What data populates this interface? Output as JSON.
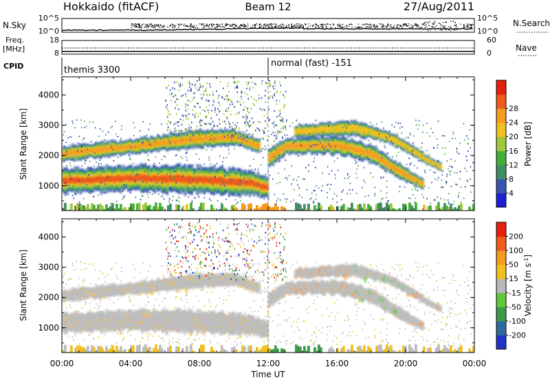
{
  "header": {
    "station": "Hokkaido (fitACF)",
    "beam": "Beam 12",
    "date": "27/Aug/2011"
  },
  "noise_panel": {
    "left_label": "N.Sky",
    "right_label": "N.Search",
    "left_ticks": [
      "10^5",
      "10^0"
    ],
    "right_ticks": [
      "10^5",
      "10^0"
    ]
  },
  "freq_panel": {
    "left_label_line1": "Freq.",
    "left_label_line2": "[MHz]",
    "right_label": "Nave",
    "left_ticks": [
      "18",
      "8"
    ],
    "right_ticks": [
      "60",
      "0"
    ]
  },
  "cpid_panel": {
    "label": "CPID",
    "modes": [
      {
        "start_hour": 0.0,
        "name": "themis 3300"
      },
      {
        "start_hour": 12.0,
        "name": "normal (fast) -151"
      }
    ]
  },
  "x_axis": {
    "label": "Time UT",
    "range": [
      0,
      24
    ],
    "tick_labels": [
      "00:00",
      "04:00",
      "08:00",
      "12:00",
      "16:00",
      "20:00",
      "00:00"
    ]
  },
  "chart_data": [
    {
      "type": "heatmap",
      "parameter": "Power",
      "ylabel": "Slant Range [km]",
      "ylim": [
        180,
        4600
      ],
      "y_ticks": [
        "1000",
        "2000",
        "3000",
        "4000"
      ],
      "colorbar_label": "Power [dB]",
      "colorbar_ticks": [
        "4",
        "8",
        "12",
        "16",
        "20",
        "24",
        "28"
      ],
      "colorbar_colors": [
        "#1f1fd2",
        "#3a56b0",
        "#3f8f63",
        "#44b03a",
        "#a0c83a",
        "#f0c020",
        "#f59a20",
        "#f05a1a",
        "#e6200f"
      ],
      "echo_bands": [
        {
          "name": "near-range strong",
          "points": [
            [
              0,
              1150,
              250
            ],
            [
              4,
              1250,
              250
            ],
            [
              8,
              1200,
              280
            ],
            [
              11,
              1100,
              250
            ],
            [
              12,
              900,
              200
            ]
          ],
          "power": 26
        },
        {
          "name": "far-range",
          "points": [
            [
              0,
              2050,
              150
            ],
            [
              4,
              2300,
              150
            ],
            [
              8,
              2550,
              180
            ],
            [
              10,
              2600,
              150
            ],
            [
              11.5,
              2300,
              120
            ]
          ],
          "power": 22
        },
        {
          "name": "post-noon arc",
          "points": [
            [
              12,
              1900,
              200
            ],
            [
              13,
              2300,
              150
            ],
            [
              16,
              2350,
              180
            ],
            [
              18,
              2050,
              170
            ],
            [
              19.5,
              1500,
              150
            ],
            [
              21,
              1050,
              100
            ]
          ],
          "power": 24
        },
        {
          "name": "evening outer arc",
          "points": [
            [
              13.5,
              2800,
              120
            ],
            [
              17,
              2900,
              150
            ],
            [
              19,
              2600,
              120
            ],
            [
              20.5,
              2100,
              100
            ],
            [
              22,
              1600,
              80
            ]
          ],
          "power": 18
        }
      ]
    },
    {
      "type": "heatmap",
      "parameter": "Velocity",
      "ylabel": "Slant Range [km]",
      "ylim": [
        180,
        4600
      ],
      "y_ticks": [
        "1000",
        "2000",
        "3000",
        "4000"
      ],
      "colorbar_label": "Velocity [m s^-1]",
      "colorbar_ticks": [
        "200",
        "100",
        "50",
        "15",
        "-15",
        "-50",
        "-100",
        "-200"
      ],
      "colorbar_colors": [
        "#2233c8",
        "#2f6a9c",
        "#3e9a4a",
        "#60c83a",
        "#b8b8b8",
        "#f0c020",
        "#f59a20",
        "#f05a1a",
        "#e6200f"
      ]
    }
  ]
}
